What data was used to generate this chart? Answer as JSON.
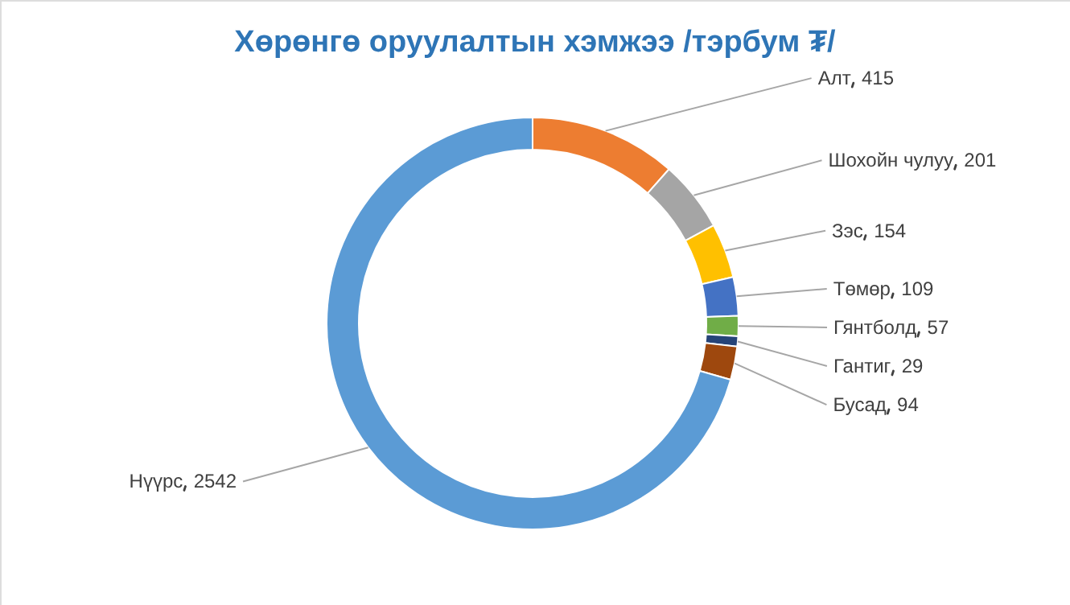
{
  "chart_data": {
    "type": "donut",
    "title": "Хөрөнгө оруулалтын хэмжээ /тэрбум ₮/",
    "categories": [
      "Алт",
      "Шохойн чулуу",
      "Зэс",
      "Төмөр",
      "Гянтболд",
      "Гантиг",
      "Бусад",
      "Нүүрс"
    ],
    "values": [
      415,
      201,
      154,
      109,
      57,
      29,
      94,
      2542
    ],
    "colors": [
      "#ed7d31",
      "#a5a5a5",
      "#ffc000",
      "#4472c4",
      "#70ad47",
      "#264478",
      "#9e480e",
      "#5b9bd5"
    ],
    "data_labels": true,
    "legend": false
  }
}
